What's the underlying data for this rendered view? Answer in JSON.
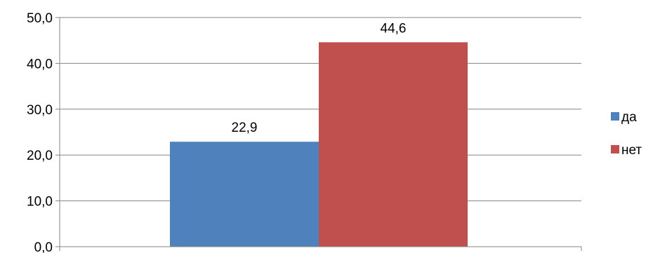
{
  "chart_data": {
    "type": "bar",
    "categories": [
      ""
    ],
    "series": [
      {
        "name": "да",
        "values": [
          22.9
        ],
        "color": "#4F81BD",
        "value_label": "22,9"
      },
      {
        "name": "нет",
        "values": [
          44.6
        ],
        "color": "#C0504D",
        "value_label": "44,6"
      }
    ],
    "ylim": [
      0,
      50
    ],
    "yticks": [
      0,
      10,
      20,
      30,
      40,
      50
    ],
    "ytick_labels": [
      "0,0",
      "10,0",
      "20,0",
      "30,0",
      "40,0",
      "50,0"
    ],
    "grid": true,
    "legend": "right",
    "title": "",
    "xlabel": "",
    "ylabel": ""
  }
}
